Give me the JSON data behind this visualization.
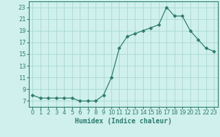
{
  "x": [
    0,
    1,
    2,
    3,
    4,
    5,
    6,
    7,
    8,
    9,
    10,
    11,
    12,
    13,
    14,
    15,
    16,
    17,
    18,
    19,
    20,
    21,
    22,
    23
  ],
  "y": [
    8.0,
    7.5,
    7.5,
    7.5,
    7.5,
    7.5,
    7.0,
    7.0,
    7.0,
    8.0,
    11.0,
    16.0,
    18.0,
    18.5,
    19.0,
    19.5,
    20.0,
    23.0,
    21.5,
    21.5,
    19.0,
    17.5,
    16.0,
    15.5
  ],
  "line_color": "#2d7a6e",
  "marker": "D",
  "marker_size": 2.5,
  "bg_color": "#cff0ec",
  "grid_color": "#a8d8d0",
  "xlabel": "Humidex (Indice chaleur)",
  "xlim": [
    -0.5,
    23.5
  ],
  "ylim": [
    6,
    24
  ],
  "yticks": [
    7,
    9,
    11,
    13,
    15,
    17,
    19,
    21,
    23
  ],
  "xticks": [
    0,
    1,
    2,
    3,
    4,
    5,
    6,
    7,
    8,
    9,
    10,
    11,
    12,
    13,
    14,
    15,
    16,
    17,
    18,
    19,
    20,
    21,
    22,
    23
  ],
  "label_fontsize": 7,
  "tick_fontsize": 6
}
